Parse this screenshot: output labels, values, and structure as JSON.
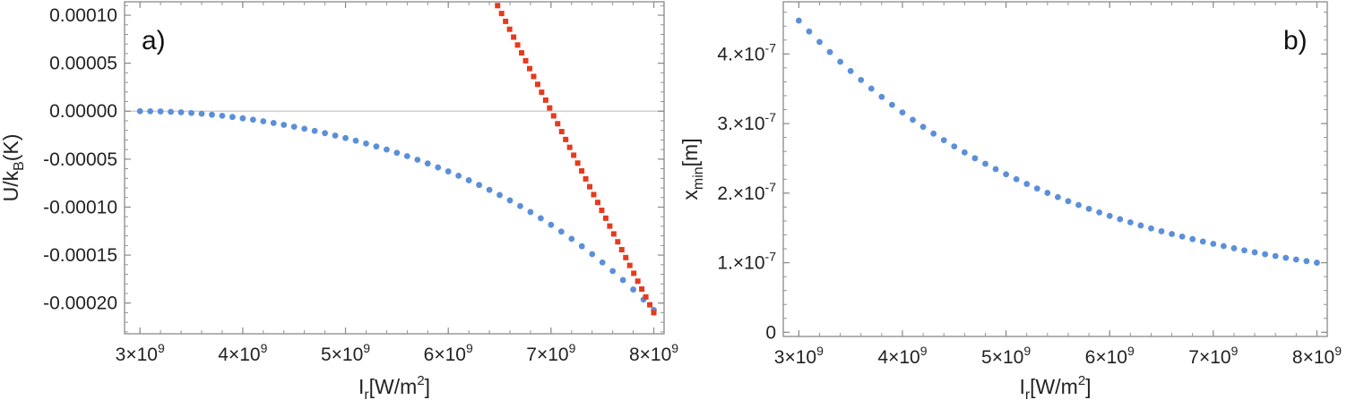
{
  "colors": {
    "blue": "#5b8fd9",
    "red": "#e63a1e",
    "frame": "#8a8a8a",
    "zero_line": "#c8c8c8"
  },
  "chart_data": [
    {
      "type": "scatter",
      "panel_label": "a)",
      "xlabel": {
        "main": "I",
        "sub": "r",
        "tail": "[W/m",
        "sup": "2",
        "close": "]"
      },
      "ylabel": {
        "main": "U/k",
        "sub": "B",
        "tail": "(K)"
      },
      "xlim": [
        2850000000.0,
        8100000000.0
      ],
      "ylim": [
        -0.000232,
        0.000114
      ],
      "x_ticks": [
        {
          "mant": "3",
          "exp": "9",
          "value": 3000000000.0
        },
        {
          "mant": "4",
          "exp": "9",
          "value": 4000000000.0
        },
        {
          "mant": "5",
          "exp": "9",
          "value": 5000000000.0
        },
        {
          "mant": "6",
          "exp": "9",
          "value": 6000000000.0
        },
        {
          "mant": "7",
          "exp": "9",
          "value": 7000000000.0
        },
        {
          "mant": "8",
          "exp": "9",
          "value": 8000000000.0
        }
      ],
      "y_ticks": [
        {
          "label": "0.00010",
          "value": 0.0001
        },
        {
          "label": "0.00005",
          "value": 5e-05
        },
        {
          "label": "0.00000",
          "value": 0
        },
        {
          "label": "-0.00005",
          "value": -5e-05
        },
        {
          "label": "-0.00010",
          "value": -0.0001
        },
        {
          "label": "-0.00015",
          "value": -0.00015
        },
        {
          "label": "-0.00020",
          "value": -0.0002
        }
      ],
      "zero_line": 0,
      "series": [
        {
          "color": "#5b8fd9",
          "marker": "circle",
          "x_start": 3000000000.0,
          "x_end": 8000000000.0,
          "count": 51,
          "y": [
            0,
            -1e-07,
            -3e-07,
            -7e-07,
            -1.2e-06,
            -1.9e-06,
            -2.7e-06,
            -3.7e-06,
            -4.8e-06,
            -6e-06,
            -7.4e-06,
            -8.9e-06,
            -1.05e-05,
            -1.23e-05,
            -1.42e-05,
            -1.62e-05,
            -1.83e-05,
            -2.05e-05,
            -2.29e-05,
            -2.54e-05,
            -2.8e-05,
            -3.08e-05,
            -3.37e-05,
            -3.68e-05,
            -4e-05,
            -4.34e-05,
            -4.69e-05,
            -5.06e-05,
            -5.45e-05,
            -5.86e-05,
            -6.28e-05,
            -6.73e-05,
            -7.2e-05,
            -7.69e-05,
            -8.2e-05,
            -8.74e-05,
            -9.3e-05,
            -9.89e-05,
            -0.0001051,
            -0.0001116,
            -0.0001184,
            -0.0001255,
            -0.000133,
            -0.0001408,
            -0.000149,
            -0.0001576,
            -0.0001666,
            -0.000176,
            -0.0001859,
            -0.0001963,
            -0.0002072
          ]
        },
        {
          "color": "#e63a1e",
          "marker": "square",
          "x_start": 6480000000.0,
          "x_end": 8000000000.0,
          "count": 40,
          "y_start": 0.00011,
          "y_end": -0.00021
        }
      ]
    },
    {
      "type": "scatter",
      "panel_label": "b)",
      "xlabel": {
        "main": "I",
        "sub": "r",
        "tail": "[W/m",
        "sup": "2",
        "close": "]"
      },
      "ylabel": {
        "main": "x",
        "sub": "min",
        "tail": "[m]"
      },
      "xlim": [
        2850000000.0,
        8100000000.0
      ],
      "ylim": [
        -6e-09,
        4.75e-07
      ],
      "x_ticks": [
        {
          "mant": "3",
          "exp": "9",
          "value": 3000000000.0
        },
        {
          "mant": "4",
          "exp": "9",
          "value": 4000000000.0
        },
        {
          "mant": "5",
          "exp": "9",
          "value": 5000000000.0
        },
        {
          "mant": "6",
          "exp": "9",
          "value": 6000000000.0
        },
        {
          "mant": "7",
          "exp": "9",
          "value": 7000000000.0
        },
        {
          "mant": "8",
          "exp": "9",
          "value": 8000000000.0
        }
      ],
      "y_ticks": [
        {
          "mant": "4.",
          "exp": "-7",
          "value": 4e-07
        },
        {
          "mant": "3.",
          "exp": "-7",
          "value": 3e-07
        },
        {
          "mant": "2.",
          "exp": "-7",
          "value": 2e-07
        },
        {
          "mant": "1.",
          "exp": "-7",
          "value": 1e-07
        },
        {
          "plain": "0",
          "value": 0
        }
      ],
      "series": [
        {
          "color": "#5b8fd9",
          "marker": "circle",
          "x_start": 3000000000.0,
          "x_end": 8000000000.0,
          "count": 51,
          "y_start": 4.48e-07,
          "y_end": 1e-07
        }
      ]
    }
  ]
}
